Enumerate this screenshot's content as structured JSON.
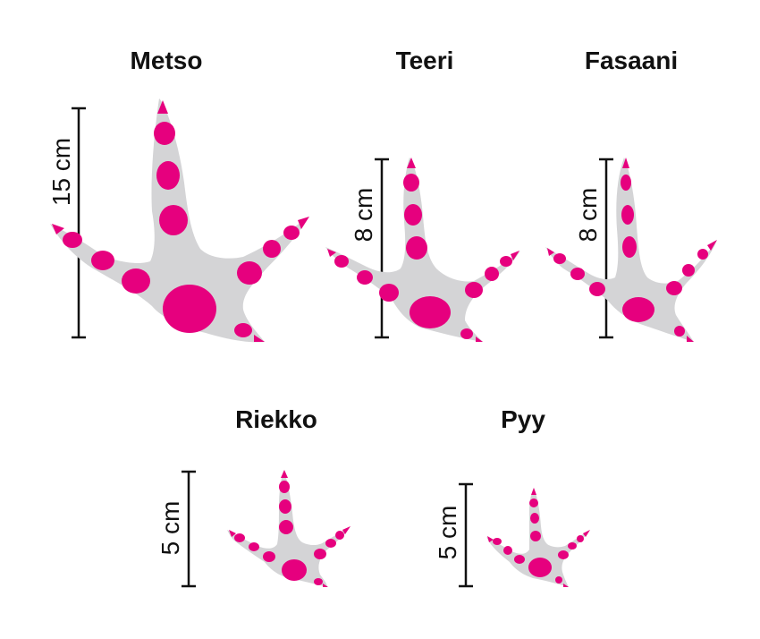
{
  "colors": {
    "foot": "#d4d4d6",
    "pad": "#e6007e",
    "ink": "#111111"
  },
  "tracks": [
    {
      "id": "metso",
      "name": "Metso",
      "scale": "15 cm"
    },
    {
      "id": "teeri",
      "name": "Teeri",
      "scale": "8 cm"
    },
    {
      "id": "fasaani",
      "name": "Fasaani",
      "scale": "8 cm"
    },
    {
      "id": "riekko",
      "name": "Riekko",
      "scale": "5 cm"
    },
    {
      "id": "pyy",
      "name": "Pyy",
      "scale": "5 cm"
    }
  ]
}
